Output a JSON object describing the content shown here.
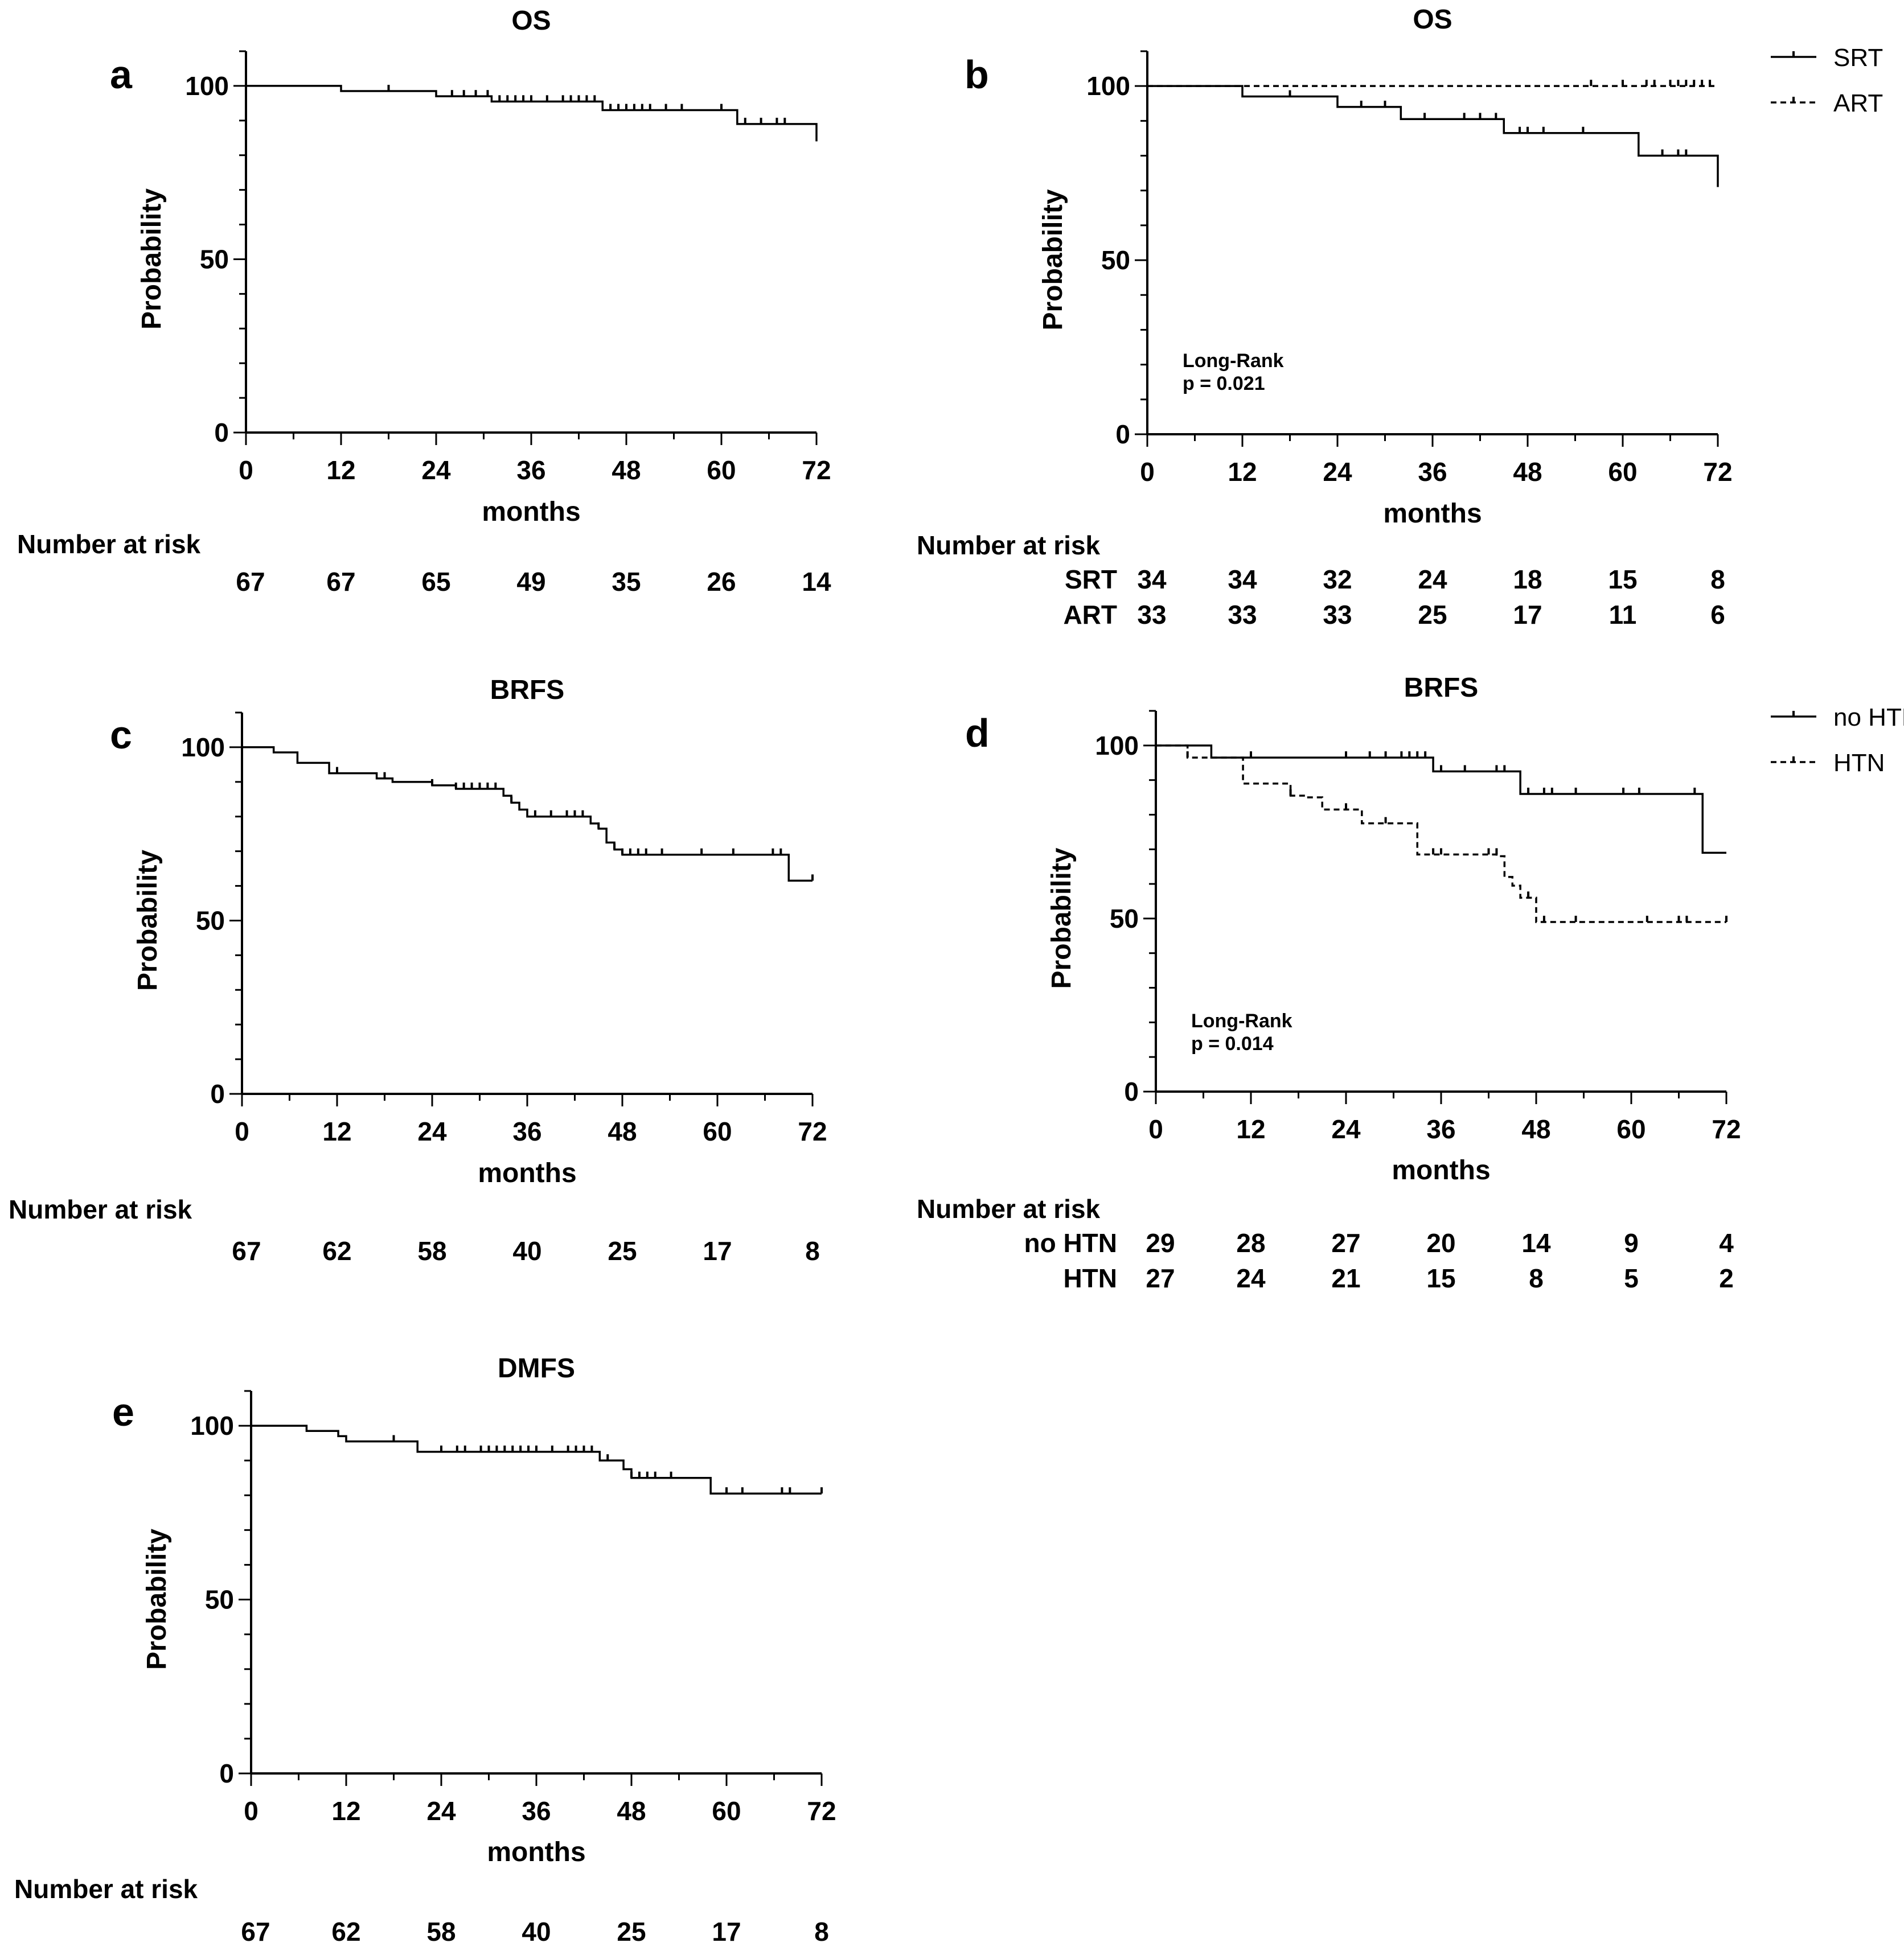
{
  "chart_data": [
    {
      "panel": "a",
      "type": "line",
      "title": "OS",
      "xlabel": "months",
      "ylabel": "Probability",
      "xlim": [
        0,
        72
      ],
      "ylim": [
        0,
        110
      ],
      "xticks": [
        0,
        12,
        24,
        36,
        48,
        60,
        72
      ],
      "yticks": [
        0,
        50,
        100
      ],
      "series": [
        {
          "style": "solid",
          "steps": [
            [
              0,
              100
            ],
            [
              12,
              98.5
            ],
            [
              24,
              97
            ],
            [
              31,
              95.5
            ],
            [
              45,
              93
            ],
            [
              62,
              89
            ],
            [
              72,
              84
            ]
          ],
          "censors": [
            [
              18,
              98.5
            ],
            [
              26,
              97
            ],
            [
              27.5,
              97
            ],
            [
              29,
              97
            ],
            [
              30.5,
              97
            ],
            [
              32,
              95.5
            ],
            [
              33,
              95.5
            ],
            [
              34,
              95.5
            ],
            [
              35,
              95.5
            ],
            [
              36,
              95.5
            ],
            [
              38,
              95.5
            ],
            [
              40,
              95.5
            ],
            [
              41,
              95.5
            ],
            [
              42,
              95.5
            ],
            [
              43,
              95.5
            ],
            [
              44,
              95.5
            ],
            [
              46,
              93
            ],
            [
              47,
              93
            ],
            [
              48,
              93
            ],
            [
              49,
              93
            ],
            [
              50,
              93
            ],
            [
              51,
              93
            ],
            [
              53,
              93
            ],
            [
              55,
              93
            ],
            [
              60,
              93
            ],
            [
              63,
              89
            ],
            [
              65,
              89
            ],
            [
              67,
              89
            ],
            [
              68,
              89
            ]
          ]
        }
      ],
      "risk_table": {
        "header": "Number at risk",
        "rows": [
          {
            "label": "",
            "values": [
              "67",
              "67",
              "65",
              "49",
              "35",
              "26",
              "14"
            ]
          }
        ]
      }
    },
    {
      "panel": "b",
      "type": "line",
      "title": "OS",
      "xlabel": "months",
      "ylabel": "Probability",
      "xlim": [
        0,
        72
      ],
      "ylim": [
        0,
        110
      ],
      "xticks": [
        0,
        12,
        24,
        36,
        48,
        60,
        72
      ],
      "yticks": [
        0,
        50,
        100
      ],
      "legend": "top-right",
      "annotation": [
        "Long-Rank",
        "p = 0.021"
      ],
      "series": [
        {
          "name": "SRT",
          "style": "solid",
          "steps": [
            [
              0,
              100
            ],
            [
              12,
              97
            ],
            [
              24,
              94
            ],
            [
              32,
              90.5
            ],
            [
              45,
              86.5
            ],
            [
              62,
              80
            ],
            [
              72,
              71
            ]
          ],
          "censors": [
            [
              18,
              97
            ],
            [
              27,
              94
            ],
            [
              30,
              94
            ],
            [
              35,
              90.5
            ],
            [
              40,
              90.5
            ],
            [
              42,
              90.5
            ],
            [
              44,
              90.5
            ],
            [
              47,
              86.5
            ],
            [
              48,
              86.5
            ],
            [
              50,
              86.5
            ],
            [
              55,
              86.5
            ],
            [
              65,
              80
            ],
            [
              67,
              80
            ],
            [
              68,
              80
            ]
          ]
        },
        {
          "name": "ART",
          "style": "dashed",
          "steps": [
            [
              0,
              100
            ],
            [
              72,
              100
            ]
          ],
          "censors": [
            [
              56,
              100
            ],
            [
              60,
              100
            ],
            [
              63,
              100
            ],
            [
              64,
              100
            ],
            [
              66,
              100
            ],
            [
              67,
              100
            ],
            [
              68,
              100
            ],
            [
              69,
              100
            ],
            [
              70,
              100
            ],
            [
              71,
              100
            ]
          ]
        }
      ],
      "risk_table": {
        "header": "Number at risk",
        "rows": [
          {
            "label": "SRT",
            "values": [
              "34",
              "34",
              "32",
              "24",
              "18",
              "15",
              "8"
            ]
          },
          {
            "label": "ART",
            "values": [
              "33",
              "33",
              "33",
              "25",
              "17",
              "11",
              "6"
            ]
          }
        ]
      }
    },
    {
      "panel": "c",
      "type": "line",
      "title": "BRFS",
      "xlabel": "months",
      "ylabel": "Probability",
      "xlim": [
        0,
        72
      ],
      "ylim": [
        0,
        110
      ],
      "xticks": [
        0,
        12,
        24,
        36,
        48,
        60,
        72
      ],
      "yticks": [
        0,
        50,
        100
      ],
      "series": [
        {
          "style": "solid",
          "steps": [
            [
              0,
              100
            ],
            [
              4,
              98.5
            ],
            [
              7,
              95.5
            ],
            [
              11,
              92.5
            ],
            [
              17,
              91
            ],
            [
              19,
              90
            ],
            [
              24,
              89
            ],
            [
              27,
              88
            ],
            [
              33,
              86
            ],
            [
              34,
              84
            ],
            [
              35,
              82
            ],
            [
              36,
              80
            ],
            [
              44,
              78
            ],
            [
              45,
              76.5
            ],
            [
              46,
              72.5
            ],
            [
              47,
              70.5
            ],
            [
              48,
              69
            ],
            [
              69,
              61.5
            ],
            [
              72,
              61.5
            ]
          ],
          "censors": [
            [
              12,
              92.5
            ],
            [
              18,
              91
            ],
            [
              24,
              89
            ],
            [
              27,
              88
            ],
            [
              28,
              88
            ],
            [
              29,
              88
            ],
            [
              30,
              88
            ],
            [
              31,
              88
            ],
            [
              32,
              88
            ],
            [
              34,
              84
            ],
            [
              37,
              80
            ],
            [
              39,
              80
            ],
            [
              41,
              80
            ],
            [
              42,
              80
            ],
            [
              43,
              80
            ],
            [
              45,
              76.5
            ],
            [
              47,
              70.5
            ],
            [
              48,
              69
            ],
            [
              49,
              69
            ],
            [
              50,
              69
            ],
            [
              51,
              69
            ],
            [
              53,
              69
            ],
            [
              58,
              69
            ],
            [
              62,
              69
            ],
            [
              67,
              69
            ],
            [
              68,
              69
            ],
            [
              72,
              61.5
            ]
          ]
        }
      ],
      "risk_table": {
        "header": "Number at risk",
        "rows": [
          {
            "label": "",
            "values": [
              "67",
              "62",
              "58",
              "40",
              "25",
              "17",
              "8"
            ]
          }
        ]
      }
    },
    {
      "panel": "d",
      "type": "line",
      "title": "BRFS",
      "xlabel": "months",
      "ylabel": "Probability",
      "xlim": [
        0,
        72
      ],
      "ylim": [
        0,
        110
      ],
      "xticks": [
        0,
        12,
        24,
        36,
        48,
        60,
        72
      ],
      "yticks": [
        0,
        50,
        100
      ],
      "legend": "top-right",
      "annotation": [
        "Long-Rank",
        "p = 0.014"
      ],
      "series": [
        {
          "name": "no HTN",
          "style": "solid",
          "steps": [
            [
              0,
              100
            ],
            [
              7,
              96.5
            ],
            [
              35,
              92.5
            ],
            [
              46,
              86
            ],
            [
              69,
              69
            ],
            [
              72,
              69
            ]
          ],
          "censors": [
            [
              12,
              96.5
            ],
            [
              24,
              96.5
            ],
            [
              27,
              96.5
            ],
            [
              29,
              96.5
            ],
            [
              31,
              96.5
            ],
            [
              32,
              96.5
            ],
            [
              33,
              96.5
            ],
            [
              34,
              96.5
            ],
            [
              36,
              92.5
            ],
            [
              39,
              92.5
            ],
            [
              43,
              92.5
            ],
            [
              44,
              92.5
            ],
            [
              47,
              86
            ],
            [
              49,
              86
            ],
            [
              50,
              86
            ],
            [
              53,
              86
            ],
            [
              59,
              86
            ],
            [
              61,
              86
            ],
            [
              68,
              86
            ]
          ]
        },
        {
          "name": "HTN",
          "style": "dashed",
          "steps": [
            [
              0,
              100
            ],
            [
              4,
              96.5
            ],
            [
              11,
              89
            ],
            [
              17,
              85.5
            ],
            [
              19,
              85
            ],
            [
              21,
              81.5
            ],
            [
              26,
              77.5
            ],
            [
              33,
              68.5
            ],
            [
              43,
              68
            ],
            [
              44,
              62
            ],
            [
              45,
              59.5
            ],
            [
              46,
              56
            ],
            [
              48,
              49
            ],
            [
              72,
              49
            ]
          ],
          "censors": [
            [
              4,
              96.5
            ],
            [
              17,
              85.5
            ],
            [
              24,
              81.5
            ],
            [
              29,
              77.5
            ],
            [
              35,
              68.5
            ],
            [
              36,
              68.5
            ],
            [
              42,
              68.5
            ],
            [
              43,
              68.5
            ],
            [
              47,
              56
            ],
            [
              49,
              49
            ],
            [
              53,
              49
            ],
            [
              62,
              49
            ],
            [
              66,
              49
            ],
            [
              67,
              49
            ],
            [
              72,
              49
            ]
          ]
        }
      ],
      "risk_table": {
        "header": "Number at risk",
        "rows": [
          {
            "label": "no HTN",
            "values": [
              "29",
              "28",
              "27",
              "20",
              "14",
              "9",
              "4"
            ]
          },
          {
            "label": "HTN",
            "values": [
              "27",
              "24",
              "21",
              "15",
              "8",
              "5",
              "2"
            ]
          }
        ]
      }
    },
    {
      "panel": "e",
      "type": "line",
      "title": "DMFS",
      "xlabel": "months",
      "ylabel": "Probability",
      "xlim": [
        0,
        72
      ],
      "ylim": [
        0,
        110
      ],
      "xticks": [
        0,
        12,
        24,
        36,
        48,
        60,
        72
      ],
      "yticks": [
        0,
        50,
        100
      ],
      "series": [
        {
          "style": "solid",
          "steps": [
            [
              0,
              100
            ],
            [
              7,
              98.5
            ],
            [
              11,
              97
            ],
            [
              12,
              95.5
            ],
            [
              21,
              92.5
            ],
            [
              44,
              90
            ],
            [
              47,
              87.5
            ],
            [
              48,
              85
            ],
            [
              58,
              80.5
            ],
            [
              72,
              80.5
            ]
          ],
          "censors": [
            [
              18,
              95.5
            ],
            [
              24,
              92.5
            ],
            [
              26,
              92.5
            ],
            [
              27,
              92.5
            ],
            [
              29,
              92.5
            ],
            [
              30,
              92.5
            ],
            [
              31,
              92.5
            ],
            [
              32,
              92.5
            ],
            [
              33,
              92.5
            ],
            [
              34,
              92.5
            ],
            [
              35,
              92.5
            ],
            [
              36,
              92.5
            ],
            [
              38,
              92.5
            ],
            [
              40,
              92.5
            ],
            [
              41,
              92.5
            ],
            [
              42,
              92.5
            ],
            [
              43,
              92.5
            ],
            [
              45,
              90
            ],
            [
              48,
              85
            ],
            [
              49,
              85
            ],
            [
              50,
              85
            ],
            [
              51,
              85
            ],
            [
              53,
              85
            ],
            [
              60,
              80.5
            ],
            [
              62,
              80.5
            ],
            [
              67,
              80.5
            ],
            [
              68,
              80.5
            ],
            [
              72,
              80.5
            ]
          ]
        }
      ],
      "risk_table": {
        "header": "Number at risk",
        "rows": [
          {
            "label": "",
            "values": [
              "67",
              "62",
              "58",
              "40",
              "25",
              "17",
              "8"
            ]
          }
        ]
      }
    }
  ]
}
